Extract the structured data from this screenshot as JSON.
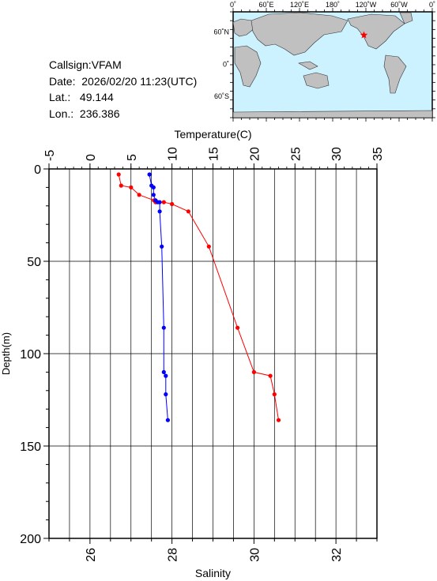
{
  "info": {
    "callsign": "Callsign:VFAM",
    "date": "Date:  2026/02/20 11:23(UTC)",
    "lat": "Lat.:   49.144",
    "lon": "Lon.:  236.386"
  },
  "map": {
    "lon_labels": [
      "0˚",
      "60˚E",
      "120˚E",
      "180˚",
      "120˚W",
      "60˚W",
      "0˚"
    ],
    "lat_labels": [
      "60˚N",
      "0˚",
      "60˚S"
    ],
    "station_marker": "red-star",
    "ocean_color": "#ccf2ff",
    "land_color": "#c0c0c0"
  },
  "chart_data": {
    "type": "line",
    "title": "",
    "ylabel": "Depth(m)",
    "ylim": [
      0,
      200
    ],
    "y_reversed": true,
    "yticks": [
      0,
      50,
      100,
      150,
      200
    ],
    "grid": true,
    "x_top": {
      "label": "Temperature(C)",
      "range": [
        -5,
        35
      ],
      "ticks": [
        -5,
        0,
        5,
        10,
        15,
        20,
        25,
        30,
        35
      ]
    },
    "x_bottom": {
      "label": "Salinity",
      "range": [
        25,
        33
      ],
      "ticks": [
        26,
        28,
        30,
        32
      ]
    },
    "series": [
      {
        "name": "",
        "axis": "top",
        "color": "#ff0000",
        "points": [
          [
            3.5,
            3
          ],
          [
            3.8,
            9
          ],
          [
            5.0,
            10
          ],
          [
            6.0,
            14
          ],
          [
            7.8,
            17
          ],
          [
            8.0,
            18
          ],
          [
            9.0,
            18
          ],
          [
            10.0,
            19
          ],
          [
            12.0,
            23
          ],
          [
            14.5,
            42
          ],
          [
            18.0,
            86
          ],
          [
            20.0,
            110
          ],
          [
            22.0,
            112
          ],
          [
            22.5,
            122
          ],
          [
            23.0,
            136
          ]
        ]
      },
      {
        "name": "",
        "axis": "bottom",
        "color": "#0000ff",
        "points": [
          [
            27.45,
            3
          ],
          [
            27.5,
            9
          ],
          [
            27.55,
            10
          ],
          [
            27.55,
            14
          ],
          [
            27.6,
            17
          ],
          [
            27.65,
            18
          ],
          [
            27.7,
            18
          ],
          [
            27.7,
            23
          ],
          [
            27.75,
            42
          ],
          [
            27.8,
            86
          ],
          [
            27.8,
            110
          ],
          [
            27.85,
            112
          ],
          [
            27.85,
            122
          ],
          [
            27.9,
            136
          ]
        ]
      }
    ]
  }
}
